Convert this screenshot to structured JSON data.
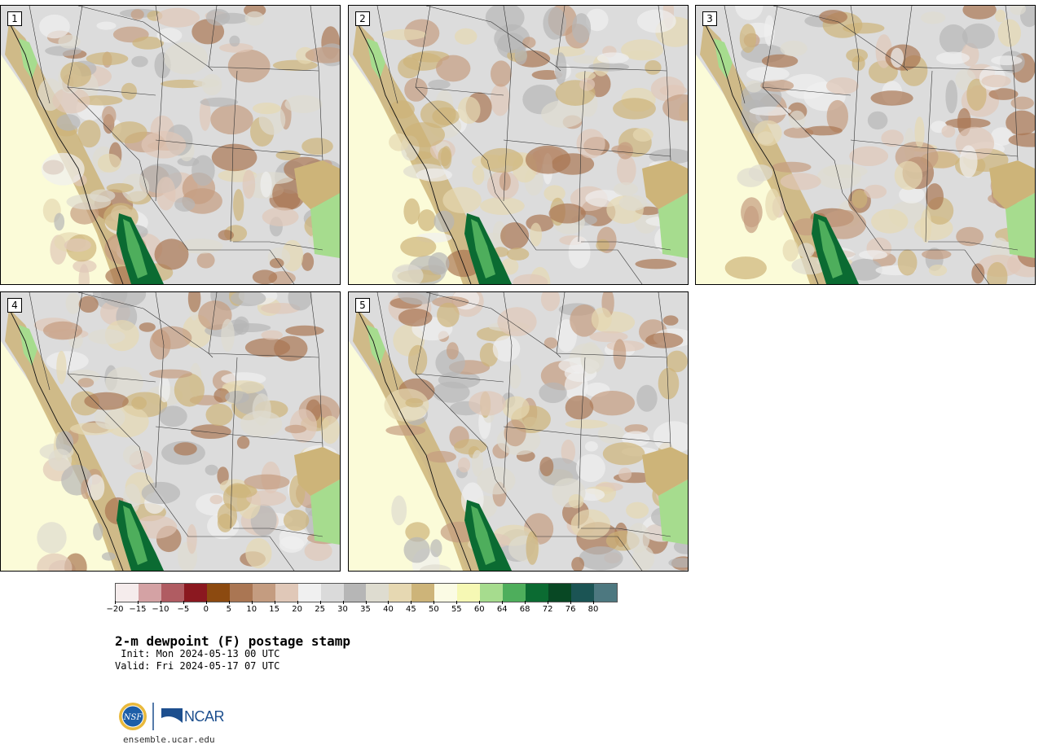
{
  "panels": [
    {
      "label": "1"
    },
    {
      "label": "2"
    },
    {
      "label": "3"
    },
    {
      "label": "4"
    },
    {
      "label": "5"
    }
  ],
  "colorbar": {
    "colors": [
      "#f5ecec",
      "#d4a2a4",
      "#b05c62",
      "#8b1820",
      "#8c4a10",
      "#aa7653",
      "#c49c80",
      "#e0c8b8",
      "#f0f0f0",
      "#dadada",
      "#b6b6b6",
      "#dedcd0",
      "#e6d8b2",
      "#cdb479",
      "#fbfbe4",
      "#f6f8b4",
      "#a6dc8e",
      "#4eae5c",
      "#0b6b32",
      "#084824",
      "#1b5454",
      "#4d7880"
    ],
    "tick_labels": [
      "−20",
      "−15",
      "−10",
      "−5",
      "0",
      "5",
      "10",
      "15",
      "20",
      "25",
      "30",
      "35",
      "40",
      "45",
      "50",
      "55",
      "60",
      "64",
      "68",
      "72",
      "76",
      "80"
    ]
  },
  "title": "2-m dewpoint (F) postage stamp",
  "init": " Init: Mon 2024-05-13 00 UTC",
  "valid": "Valid: Fri 2024-05-17 07 UTC",
  "logos": {
    "ncar": "NCAR",
    "nsf": "NSF",
    "nsf_icon": "nsf-seal-icon",
    "ncar_icon": "ncar-swoosh-icon"
  },
  "website": "ensemble.ucar.edu"
}
